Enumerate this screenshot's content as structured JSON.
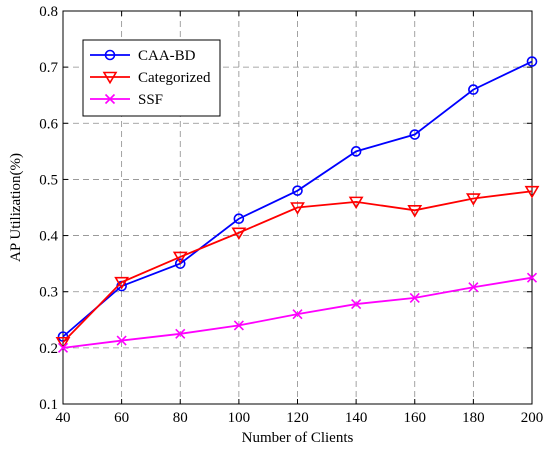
{
  "chart_data": {
    "type": "line",
    "title": "",
    "xlabel": "Number of Clients",
    "ylabel": "AP Utilization(%)",
    "x": [
      40,
      60,
      80,
      100,
      120,
      140,
      160,
      180,
      200
    ],
    "xlim": [
      40,
      200
    ],
    "ylim": [
      0.1,
      0.8
    ],
    "xticks": [
      "40",
      "60",
      "80",
      "100",
      "120",
      "140",
      "160",
      "180",
      "200"
    ],
    "yticks": [
      "0.1",
      "0.2",
      "0.3",
      "0.4",
      "0.5",
      "0.6",
      "0.7",
      "0.8"
    ],
    "grid": true,
    "legend_position": "top-left",
    "series": [
      {
        "name": "CAA-BD",
        "color": "#0000ff",
        "marker": "circle",
        "values": [
          0.22,
          0.31,
          0.35,
          0.43,
          0.48,
          0.55,
          0.58,
          0.66,
          0.71
        ]
      },
      {
        "name": "Categorized",
        "color": "#ff0000",
        "marker": "triangle-down",
        "values": [
          0.21,
          0.317,
          0.362,
          0.405,
          0.45,
          0.46,
          0.445,
          0.466,
          0.479
        ]
      },
      {
        "name": "SSF",
        "color": "#ff00ff",
        "marker": "x",
        "values": [
          0.2,
          0.213,
          0.225,
          0.24,
          0.26,
          0.278,
          0.289,
          0.308,
          0.325
        ]
      }
    ]
  }
}
